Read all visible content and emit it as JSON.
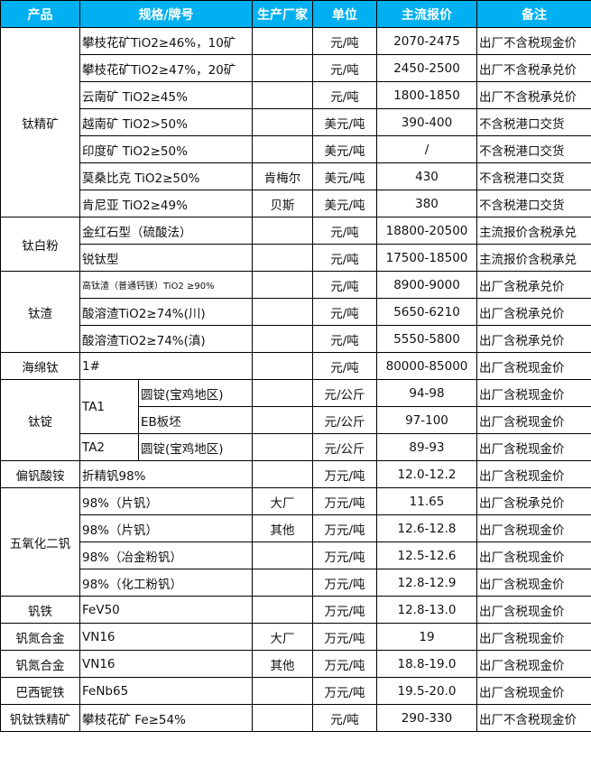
{
  "header": {
    "product": "产品",
    "spec": "规格/牌号",
    "maker": "生产厂家",
    "unit": "单位",
    "price": "主流报价",
    "note": "备注"
  },
  "colors": {
    "header_bg": "#00b0f0",
    "header_text": "#ffffff",
    "border": "#000000"
  },
  "groups": [
    {
      "product": "钛精矿",
      "items": [
        {
          "spec": "攀枝花矿TiO2≥46%，10矿",
          "maker": "",
          "unit": "元/吨",
          "price": "2070-2475",
          "note": "出厂不含税现金价"
        },
        {
          "spec": "攀枝花矿TiO2≥47%，20矿",
          "maker": "",
          "unit": "元/吨",
          "price": "2450-2500",
          "note": "出厂不含税承兑价"
        },
        {
          "spec": "云南矿 TiO2≥45%",
          "maker": "",
          "unit": "元/吨",
          "price": "1800-1850",
          "note": "出厂不含税承兑价"
        },
        {
          "spec": "越南矿 TiO2>50%",
          "maker": "",
          "unit": "美元/吨",
          "price": "390-400",
          "note": "不含税港口交货"
        },
        {
          "spec": "印度矿 TiO2≥50%",
          "maker": "",
          "unit": "美元/吨",
          "price": "/",
          "note": "不含税港口交货"
        },
        {
          "spec": "莫桑比克 TiO2≥50%",
          "maker": "肯梅尔",
          "unit": "美元/吨",
          "price": "430",
          "note": "不含税港口交货"
        },
        {
          "spec": "肯尼亚 TiO2≥49%",
          "maker": "贝斯",
          "unit": "美元/吨",
          "price": "380",
          "note": "不含税港口交货"
        }
      ]
    },
    {
      "product": "钛白粉",
      "items": [
        {
          "spec": "金红石型（硫酸法）",
          "maker": "",
          "unit": "元/吨",
          "price": "18800-20500",
          "note": "主流报价含税承兑"
        },
        {
          "spec": "锐钛型",
          "maker": "",
          "unit": "元/吨",
          "price": "17500-18500",
          "note": "主流报价含税承兑"
        }
      ]
    },
    {
      "product": "钛渣",
      "items": [
        {
          "spec": "高钛渣（普通钙镁）TiO2 ≥90%",
          "small": true,
          "maker": "",
          "unit": "元/吨",
          "price": "8900-9000",
          "note": "出厂含税承兑价"
        },
        {
          "spec": "酸溶渣TiO2≥74%(川)",
          "maker": "",
          "unit": "元/吨",
          "price": "5650-6210",
          "note": "出厂含税承兑价"
        },
        {
          "spec": "酸溶渣TiO2≥74%(滇)",
          "maker": "",
          "unit": "元/吨",
          "price": "5550-5800",
          "note": "出厂含税承兑价"
        }
      ]
    },
    {
      "product": "海绵钛",
      "items": [
        {
          "spec": "1#",
          "maker": "",
          "unit": "元/吨",
          "price": "80000-85000",
          "note": "出厂含税现金价"
        }
      ]
    },
    {
      "product": "钛锭",
      "items": [
        {
          "grade": "TA1",
          "spec": "圆锭(宝鸡地区)",
          "maker": "",
          "unit": "元/公斤",
          "price": "94-98",
          "note": "出厂含税现金价"
        },
        {
          "grade": "TA1",
          "spec": "EB板坯",
          "maker": "",
          "unit": "元/公斤",
          "price": "97-100",
          "note": "出厂含税现金价"
        },
        {
          "grade": "TA2",
          "spec": "圆锭(宝鸡地区)",
          "maker": "",
          "unit": "元/公斤",
          "price": "89-93",
          "note": "出厂含税现金价"
        }
      ]
    },
    {
      "product": "偏钒酸铵",
      "items": [
        {
          "spec": "折精钒98%",
          "maker": "",
          "unit": "万元/吨",
          "price": "12.0-12.2",
          "note": "出厂含税现金价"
        }
      ]
    },
    {
      "product": "五氧化二钒",
      "items": [
        {
          "spec": "98%（片钒）",
          "maker": "大厂",
          "unit": "万元/吨",
          "price": "11.65",
          "note": "出厂含税承兑价"
        },
        {
          "spec": "98%（片钒）",
          "maker": "其他",
          "unit": "万元/吨",
          "price": "12.6-12.8",
          "note": "出厂含税现金价"
        },
        {
          "spec": "98%（冶金粉钒）",
          "maker": "",
          "unit": "万元/吨",
          "price": "12.5-12.6",
          "note": "出厂含税现金价"
        },
        {
          "spec": "98%（化工粉钒）",
          "maker": "",
          "unit": "万元/吨",
          "price": "12.8-12.9",
          "note": "出厂含税现金价"
        }
      ]
    },
    {
      "product": "钒铁",
      "items": [
        {
          "spec": "FeV50",
          "maker": "",
          "unit": "万元/吨",
          "price": "12.8-13.0",
          "note": "出厂含税现金价"
        }
      ]
    },
    {
      "product": "钒氮合金",
      "items": [
        {
          "spec": "VN16",
          "maker": "大厂",
          "unit": "万元/吨",
          "price": "19",
          "note": "出厂含税现金价"
        }
      ]
    },
    {
      "product": "钒氮合金",
      "items": [
        {
          "spec": "VN16",
          "maker": "其他",
          "unit": "万元/吨",
          "price": "18.8-19.0",
          "note": "出厂含税现金价"
        }
      ]
    },
    {
      "product": "巴西铌铁",
      "items": [
        {
          "spec": "FeNb65",
          "maker": "",
          "unit": "万元/吨",
          "price": "19.5-20.0",
          "note": "出厂含税现金价"
        }
      ]
    },
    {
      "product": "钒钛铁精矿",
      "items": [
        {
          "spec": "攀枝花矿 Fe≥54%",
          "maker": "",
          "unit": "元/吨",
          "price": "290-330",
          "note": "出厂不含税现金价"
        }
      ]
    }
  ]
}
